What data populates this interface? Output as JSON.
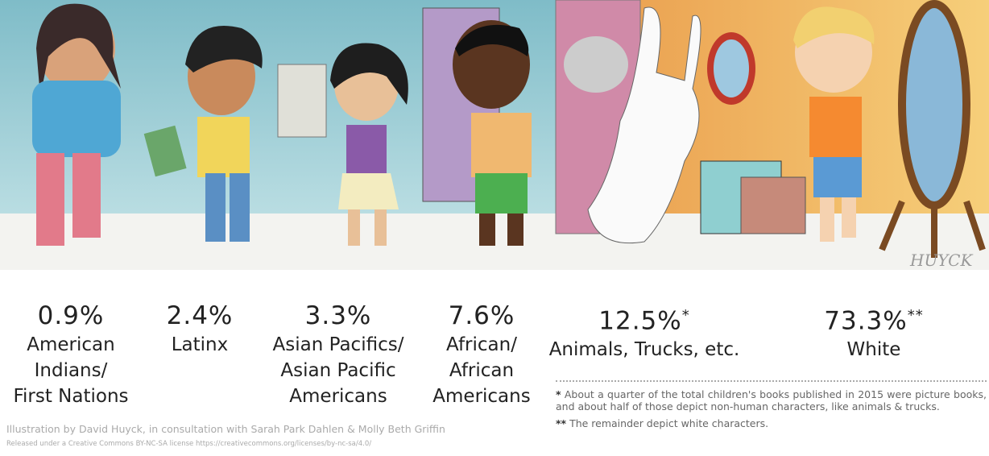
{
  "groups": [
    {
      "percent": "0.9%",
      "label": [
        "American",
        "Indians/",
        "First Nations"
      ]
    },
    {
      "percent": "2.4%",
      "label": [
        "Latinx"
      ]
    },
    {
      "percent": "3.3%",
      "label": [
        "Asian Pacifics/",
        "Asian Pacific",
        "Americans"
      ]
    },
    {
      "percent": "7.6%",
      "label": [
        "African/",
        "African",
        "Americans"
      ]
    },
    {
      "percent": "12.5%",
      "mark": "*",
      "label": [
        "Animals, Trucks, etc."
      ]
    },
    {
      "percent": "73.3%",
      "mark": "**",
      "label": [
        "White"
      ]
    }
  ],
  "footnotes": [
    {
      "mark": "*",
      "text": "About a quarter of the total children's books published in 2015 were picture books, and about half of those depict non-human characters, like animals & trucks."
    },
    {
      "mark": "**",
      "text": "The remainder depict white characters."
    }
  ],
  "signature": "HUYCK",
  "credits": [
    "Illustration by David Huyck, in consultation with Sarah Park Dahlen & Molly Beth Griffin",
    "Released under a Creative Commons BY-NC-SA license https://creativecommons.org/licenses/by-nc-sa/4.0/"
  ]
}
